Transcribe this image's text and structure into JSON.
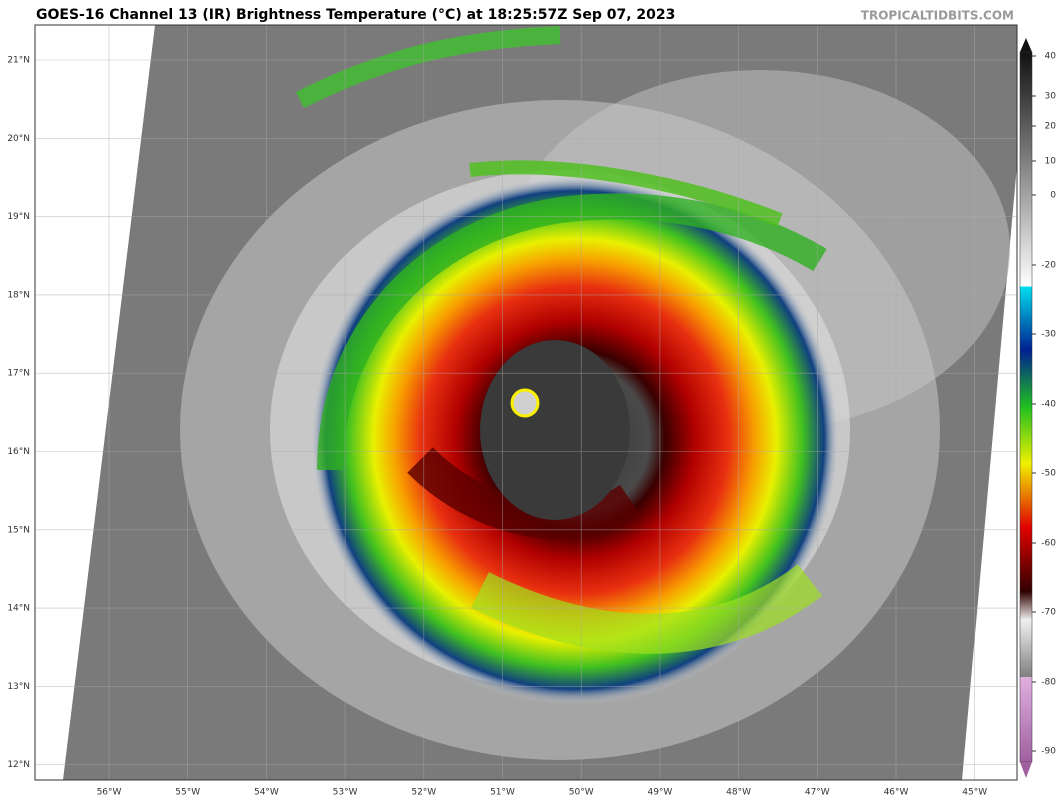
{
  "header": {
    "title": "GOES-16 Channel 13 (IR) Brightness Temperature (°C) at 18:25:57Z Sep 07, 2023",
    "source": "TROPICALTIDBITS.COM"
  },
  "map": {
    "lat_labels": [
      "21°N",
      "20°N",
      "19°N",
      "18°N",
      "17°N",
      "16°N",
      "15°N",
      "14°N",
      "13°N",
      "12°N"
    ],
    "lon_labels": [
      "56°W",
      "55°W",
      "54°W",
      "53°W",
      "52°W",
      "51°W",
      "50°W",
      "49°W",
      "48°W",
      "47°W",
      "46°W",
      "45°W"
    ]
  },
  "colorbar": {
    "ticks": [
      "40",
      "30",
      "20",
      "10",
      "0",
      "-20",
      "-30",
      "-40",
      "-50",
      "-60",
      "-70",
      "-80",
      "-90"
    ]
  }
}
